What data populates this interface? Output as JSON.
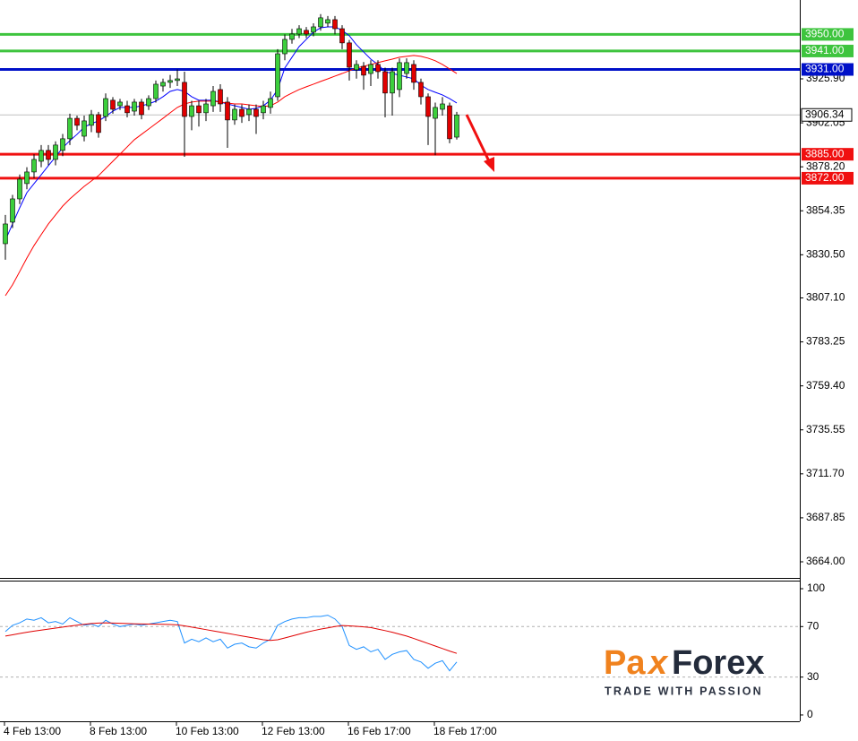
{
  "chart_data": [
    {
      "type": "candlestick",
      "categories": [
        "4 Feb 13:00",
        null,
        null,
        null,
        null,
        null,
        null,
        null,
        null,
        null,
        null,
        null,
        "8 Feb 13:00",
        null,
        null,
        null,
        null,
        null,
        null,
        null,
        null,
        null,
        null,
        null,
        "10 Feb 13:00",
        null,
        null,
        null,
        null,
        null,
        null,
        null,
        null,
        null,
        null,
        null,
        "12 Feb 13:00",
        null,
        null,
        null,
        null,
        null,
        null,
        null,
        null,
        null,
        null,
        null,
        "16 Feb 17:00",
        null,
        null,
        null,
        null,
        null,
        null,
        null,
        null,
        null,
        null,
        null,
        "18 Feb 17:00",
        null,
        null,
        null
      ],
      "open": [
        3836.5,
        3848.2,
        3860.8,
        3869.1,
        3875.4,
        3881.2,
        3887.1,
        3882.2,
        3887.1,
        3893.4,
        3904.5,
        3894.8,
        3900.7,
        3906.5,
        3905.5,
        3914.3,
        3911.3,
        3911.3,
        3908.4,
        3913.3,
        3911.3,
        3915.2,
        3922.0,
        3924.0,
        3925.0,
        3924.0,
        3905.5,
        3911.3,
        3907.5,
        3911.3,
        3920.1,
        3913.3,
        3903.6,
        3909.4,
        3906.5,
        3909.4,
        3907.5,
        3910.4,
        3916.2,
        3939.5,
        3947.3,
        3950.2,
        3952.2,
        3951.2,
        3954.1,
        3956.1,
        3958.0,
        3953.1,
        3945.4,
        3930.8,
        3932.7,
        3928.8,
        3933.7,
        3929.8,
        3918.2,
        3920.1,
        3928.8,
        3933.7,
        3924.0,
        3916.2,
        3904.5,
        3909.4,
        3911.3,
        3894.3
      ],
      "high": [
        3852.1,
        3863,
        3874,
        3878,
        3885,
        3890,
        3890,
        3892,
        3896,
        3907,
        3906,
        3906,
        3909,
        3908,
        3918,
        3916,
        3915,
        3914,
        3915,
        3915,
        3917,
        3925,
        3926,
        3928,
        3931,
        3929.8,
        3914,
        3914,
        3915,
        3922,
        3923,
        3916,
        3912,
        3912,
        3912,
        3912,
        3914,
        3919,
        3942,
        3950,
        3953,
        3955,
        3954,
        3956,
        3961,
        3960,
        3960,
        3955,
        3947,
        3936,
        3935,
        3936,
        3936,
        3932,
        3932,
        3937,
        3937,
        3936,
        3926,
        3918,
        3913,
        3916,
        3913,
        3908
      ],
      "low": [
        3827.8,
        3845,
        3858,
        3866,
        3872,
        3878,
        3879,
        3879,
        3884,
        3890,
        3898,
        3892,
        3897,
        3894,
        3903,
        3907,
        3909,
        3905,
        3906,
        3904,
        3909,
        3913,
        3919,
        3921,
        3922,
        3883.6,
        3898,
        3900,
        3903,
        3908,
        3908,
        3888.5,
        3901,
        3902,
        3903,
        3896,
        3904,
        3907,
        3914,
        3936,
        3945,
        3948,
        3948,
        3949,
        3952,
        3954,
        3950,
        3942,
        3925,
        3926,
        3920,
        3922,
        3926,
        3905,
        3906,
        3916,
        3926,
        3920,
        3912,
        3890,
        3884.5,
        3906,
        3891,
        3893
      ],
      "close": [
        3847.2,
        3860.8,
        3871.5,
        3875.4,
        3882.2,
        3887.1,
        3882.2,
        3890.0,
        3893.4,
        3904.5,
        3900.7,
        3903.1,
        3906.5,
        3896.8,
        3915.2,
        3909.4,
        3913.3,
        3907.5,
        3913.3,
        3906.5,
        3915.2,
        3923.0,
        3924.0,
        3925.0,
        3925.9,
        3905.5,
        3911.3,
        3907.5,
        3912.3,
        3919.1,
        3912.3,
        3903.6,
        3909.4,
        3905.5,
        3909.4,
        3905.5,
        3911.3,
        3915.2,
        3939.5,
        3947.3,
        3950.2,
        3953.1,
        3950.2,
        3954.1,
        3959.0,
        3958.0,
        3953.1,
        3945.4,
        3932.2,
        3933.7,
        3927.9,
        3933.7,
        3929.8,
        3918.2,
        3929.8,
        3934.7,
        3934.7,
        3924.0,
        3916.2,
        3905.5,
        3910.4,
        3912.3,
        3893.4,
        3906.34
      ],
      "up_color": "#3ccf3c",
      "down_color": "#e00000",
      "lines": [
        {
          "color": "#0000ff",
          "values": [
            3838.4,
            3847.2,
            3856.0,
            3864.2,
            3869.1,
            3873.9,
            3878.8,
            3883.6,
            3888.5,
            3892.4,
            3895.8,
            3899.7,
            3901.6,
            3903.1,
            3905.5,
            3908.4,
            3910.4,
            3910.4,
            3910.4,
            3911.3,
            3912.3,
            3913.8,
            3916.2,
            3919.1,
            3920.1,
            3919.1,
            3916.2,
            3914.3,
            3914.3,
            3914.3,
            3913.3,
            3912.3,
            3911.3,
            3910.4,
            3909.4,
            3909.9,
            3911.3,
            3914.3,
            3920.1,
            3931.8,
            3937.6,
            3943.4,
            3947.3,
            3951.2,
            3953.6,
            3954.1,
            3954.1,
            3952.2,
            3949.3,
            3944.4,
            3940.5,
            3936.6,
            3933.7,
            3929.8,
            3928.8,
            3927.9,
            3926.9,
            3925.9,
            3922.5,
            3920.1,
            3918.6,
            3917.2,
            3915.2,
            3912.8
          ]
        },
        {
          "color": "#ff0000",
          "values": [
            3808.3,
            3814.2,
            3821.4,
            3828.7,
            3835.5,
            3841.4,
            3847.2,
            3852.1,
            3856.9,
            3860.8,
            3864.2,
            3867.6,
            3870.5,
            3873.4,
            3877.3,
            3881.2,
            3885.1,
            3889.0,
            3892.9,
            3895.8,
            3898.7,
            3901.6,
            3904.5,
            3907.5,
            3910.4,
            3912.3,
            3913.3,
            3913.8,
            3913.8,
            3913.8,
            3913.3,
            3912.8,
            3912.3,
            3912.3,
            3911.8,
            3911.3,
            3910.9,
            3911.3,
            3913.3,
            3916.2,
            3918.2,
            3920.1,
            3921.6,
            3923.0,
            3924.5,
            3925.9,
            3927.4,
            3928.8,
            3930.3,
            3931.8,
            3932.7,
            3933.7,
            3934.7,
            3935.7,
            3936.6,
            3937.6,
            3938.1,
            3938.6,
            3938.1,
            3937.1,
            3935.7,
            3933.7,
            3931.3,
            3928.8
          ]
        }
      ],
      "ylim": [
        3655.25,
        3968.66
      ],
      "yticks": [
        {
          "value": 3925.9,
          "label": "3925.90"
        },
        {
          "value": 3902.05,
          "label": "3902.05"
        },
        {
          "value": 3878.2,
          "label": "3878.20"
        },
        {
          "value": 3854.35,
          "label": "3854.35"
        },
        {
          "value": 3830.5,
          "label": "3830.50"
        },
        {
          "value": 3807.1,
          "label": "3807.10"
        },
        {
          "value": 3783.25,
          "label": "3783.25"
        },
        {
          "value": 3759.4,
          "label": "3759.40"
        },
        {
          "value": 3735.55,
          "label": "3735.55"
        },
        {
          "value": 3711.7,
          "label": "3711.70"
        },
        {
          "value": 3687.85,
          "label": "3687.85"
        },
        {
          "value": 3664,
          "label": "3664.00"
        }
      ],
      "levels": [
        {
          "value": 3950,
          "label": "3950.00",
          "color": "#3ec43e"
        },
        {
          "value": 3941,
          "label": "3941.00",
          "color": "#3ec43e"
        },
        {
          "value": 3931,
          "label": "3931.00",
          "color": "#0010c8"
        },
        {
          "value": 3885,
          "label": "3885.00",
          "color": "#f01010"
        },
        {
          "value": 3872,
          "label": "3872.00",
          "color": "#f01010"
        }
      ],
      "last_price": {
        "value": 3906.34,
        "label": "3906.34"
      }
    },
    {
      "type": "line",
      "series": [
        {
          "color": "#1e90ff",
          "values": [
            66,
            71,
            73,
            76,
            75,
            77,
            73,
            74,
            72,
            77,
            74,
            71,
            72,
            70,
            75,
            72,
            70,
            71,
            72,
            71,
            72,
            73,
            74,
            75,
            74,
            57,
            60,
            58,
            61,
            58,
            60,
            53,
            56,
            57,
            54,
            53,
            57,
            60,
            71,
            74,
            76,
            77,
            77,
            78,
            78,
            79,
            76,
            70,
            55,
            52,
            54,
            50,
            52,
            44,
            48,
            50,
            51,
            44,
            42,
            37,
            41,
            43,
            35,
            42
          ]
        },
        {
          "color": "#e00000",
          "values": [
            62.5,
            63.5,
            64.5,
            65.5,
            66.4,
            67.2,
            68,
            68.8,
            69.6,
            70.4,
            71.1,
            71.8,
            72.4,
            72.8,
            73,
            72.8,
            72.6,
            72.4,
            72.2,
            72.1,
            72,
            71.9,
            71.8,
            71.6,
            71.4,
            70.6,
            69.6,
            68.6,
            67.6,
            66.6,
            65.6,
            64.6,
            63.6,
            62.6,
            61.6,
            60.6,
            59.6,
            59,
            59.6,
            61,
            62.5,
            64,
            65.5,
            66.8,
            68,
            69,
            70,
            70.8,
            70.6,
            70.2,
            69.8,
            69.2,
            68,
            66.8,
            65.5,
            64,
            62.5,
            60.6,
            58.6,
            56.6,
            54.6,
            52.6,
            50.6,
            48.8
          ]
        }
      ],
      "ylim": [
        -5,
        106.4
      ],
      "yticks": [
        100,
        70,
        30,
        0
      ],
      "levels": [
        70,
        30
      ]
    }
  ],
  "logo": {
    "left": "Pa",
    "mid": "x",
    "right": "Forex",
    "tagline": "TRADE WITH PASSION"
  }
}
